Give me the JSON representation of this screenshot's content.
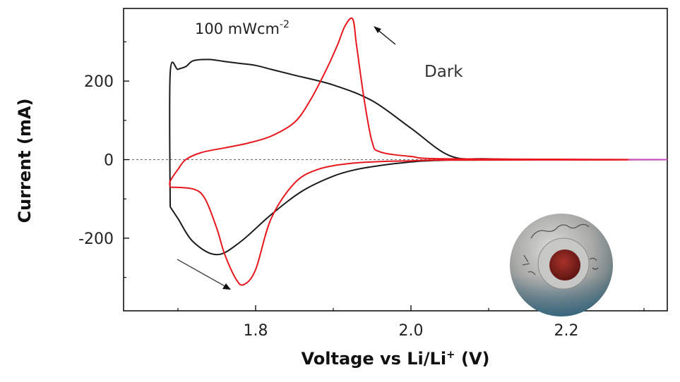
{
  "chart_data": {
    "type": "line",
    "title": "",
    "xlabel_main": "Voltage vs Li/Li",
    "xlabel_sup": "+",
    "xlabel_unit": " (V)",
    "ylabel": "Current (mA)",
    "xlim": [
      1.63,
      2.33
    ],
    "ylim": [
      -385,
      385
    ],
    "x_ticks": [
      1.8,
      2.0,
      2.2
    ],
    "x_tick_labels": [
      "1.8",
      "2.0",
      "2.2"
    ],
    "y_ticks": [
      -200,
      0,
      200
    ],
    "y_tick_labels": [
      "-200",
      "0",
      "200"
    ],
    "zero_line": true,
    "grid": false,
    "legend": "none",
    "annotations": {
      "light_text": "100 mWcm",
      "light_exp": "-2",
      "dark_text": "Dark"
    },
    "colors": {
      "Dark": "#1a1a1a",
      "Light": "#e8171e",
      "zero_line": "#666666",
      "tail": "#c050c0"
    },
    "series": [
      {
        "key": "Dark",
        "x": [
          1.69,
          1.7,
          1.72,
          1.75,
          1.78,
          1.82,
          1.86,
          1.9,
          1.93,
          1.96,
          1.985,
          2.0,
          2.01,
          2.02,
          2.035,
          2.05,
          2.08,
          2.12,
          2.2,
          2.33,
          2.2,
          2.1,
          2.05,
          2.0,
          1.95,
          1.9,
          1.85,
          1.82,
          1.8,
          1.78,
          1.76,
          1.74,
          1.72,
          1.71,
          1.7,
          1.69
        ],
        "y": [
          -120,
          -150,
          -210,
          -242,
          -210,
          -140,
          -80,
          -42,
          -25,
          -15,
          -9,
          -6,
          -4,
          -3,
          -2,
          -1,
          -1,
          0,
          0,
          0,
          0,
          2,
          10,
          80,
          150,
          190,
          215,
          230,
          240,
          245,
          250,
          255,
          252,
          237,
          230,
          220
        ]
      },
      {
        "key": "Light",
        "x": [
          1.69,
          1.72,
          1.735,
          1.75,
          1.76,
          1.775,
          1.785,
          1.8,
          1.82,
          1.85,
          1.88,
          1.92,
          1.96,
          2.0,
          2.05,
          2.33,
          2.05,
          2.0,
          1.96,
          1.95,
          1.94,
          1.93,
          1.925,
          1.915,
          1.905,
          1.89,
          1.87,
          1.85,
          1.82,
          1.79,
          1.76,
          1.73,
          1.71,
          1.7,
          1.69
        ],
        "y": [
          -70,
          -75,
          -100,
          -175,
          -240,
          -305,
          -318,
          -280,
          -150,
          -60,
          -25,
          -10,
          -5,
          -3,
          -1,
          0,
          2,
          8,
          20,
          45,
          150,
          290,
          358,
          340,
          290,
          225,
          150,
          95,
          60,
          42,
          30,
          18,
          0,
          -25,
          -55
        ]
      }
    ]
  }
}
